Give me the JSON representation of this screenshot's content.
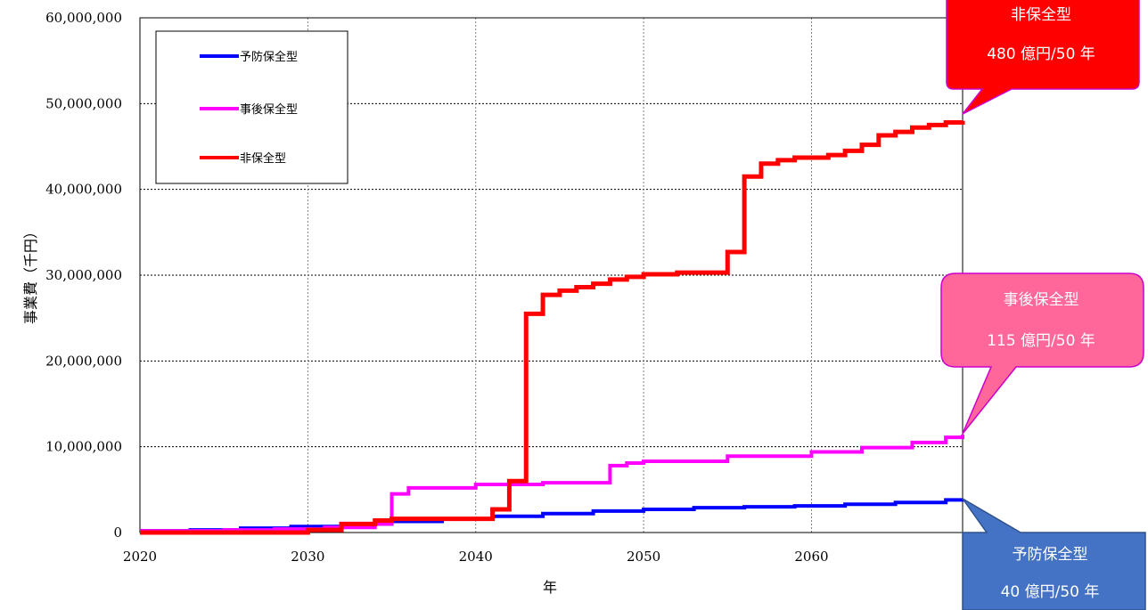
{
  "chart_data": {
    "type": "line",
    "step": true,
    "xlabel": "年",
    "ylabel": "事業費（千円）",
    "xlim": [
      2020,
      2069
    ],
    "ylim": [
      0,
      60000000
    ],
    "x_ticks": [
      2020,
      2030,
      2040,
      2050,
      2060
    ],
    "y_ticks": [
      0,
      10000000,
      20000000,
      30000000,
      40000000,
      50000000,
      60000000
    ],
    "y_tick_labels": [
      "0",
      "10,000,000",
      "20,000,000",
      "30,000,000",
      "40,000,000",
      "50,000,000",
      "60,000,000"
    ],
    "grid": true,
    "legend_position": "top-left",
    "series": [
      {
        "name": "予防保全型",
        "color": "#0000ff",
        "x": [
          2020,
          2023,
          2026,
          2029,
          2032,
          2035,
          2038,
          2041,
          2044,
          2047,
          2050,
          2053,
          2056,
          2059,
          2062,
          2065,
          2068,
          2069
        ],
        "y": [
          200000,
          300000,
          500000,
          700000,
          1000000,
          1300000,
          1600000,
          1900000,
          2200000,
          2500000,
          2700000,
          2900000,
          3000000,
          3100000,
          3300000,
          3500000,
          3800000,
          3900000
        ]
      },
      {
        "name": "事後保全型",
        "color": "#ff00ff",
        "x": [
          2020,
          2025,
          2028,
          2031,
          2034,
          2035,
          2036,
          2040,
          2044,
          2048,
          2049,
          2050,
          2055,
          2060,
          2063,
          2066,
          2068,
          2069
        ],
        "y": [
          200000,
          300000,
          400000,
          600000,
          1000000,
          4500000,
          5200000,
          5600000,
          5800000,
          7800000,
          8100000,
          8300000,
          8900000,
          9400000,
          9900000,
          10500000,
          11100000,
          11400000
        ]
      },
      {
        "name": "非保全型",
        "color": "#ff0000",
        "x": [
          2020,
          2030,
          2032,
          2034,
          2035,
          2041,
          2042,
          2043,
          2044,
          2045,
          2046,
          2047,
          2048,
          2049,
          2050,
          2052,
          2055,
          2056,
          2057,
          2058,
          2059,
          2061,
          2062,
          2063,
          2064,
          2065,
          2066,
          2067,
          2068,
          2069
        ],
        "y": [
          0,
          300000,
          1000000,
          1400000,
          1600000,
          2700000,
          6000000,
          25500000,
          27700000,
          28200000,
          28600000,
          29000000,
          29500000,
          29800000,
          30100000,
          30300000,
          32700000,
          41500000,
          43000000,
          43400000,
          43700000,
          44000000,
          44500000,
          45200000,
          46300000,
          46700000,
          47200000,
          47500000,
          47800000,
          48000000
        ]
      }
    ],
    "callouts": [
      {
        "line1": "非保全型",
        "line2": "480 億円/50 年",
        "fill": "#ff0000",
        "stroke": "#cc00cc"
      },
      {
        "line1": "事後保全型",
        "line2": "115 億円/50 年",
        "fill": "#ff6699",
        "stroke": "#cc00cc"
      },
      {
        "line1": "予防保全型",
        "line2": "40 億円/50 年",
        "fill": "#4472c4",
        "stroke": "#2f528f"
      }
    ]
  }
}
